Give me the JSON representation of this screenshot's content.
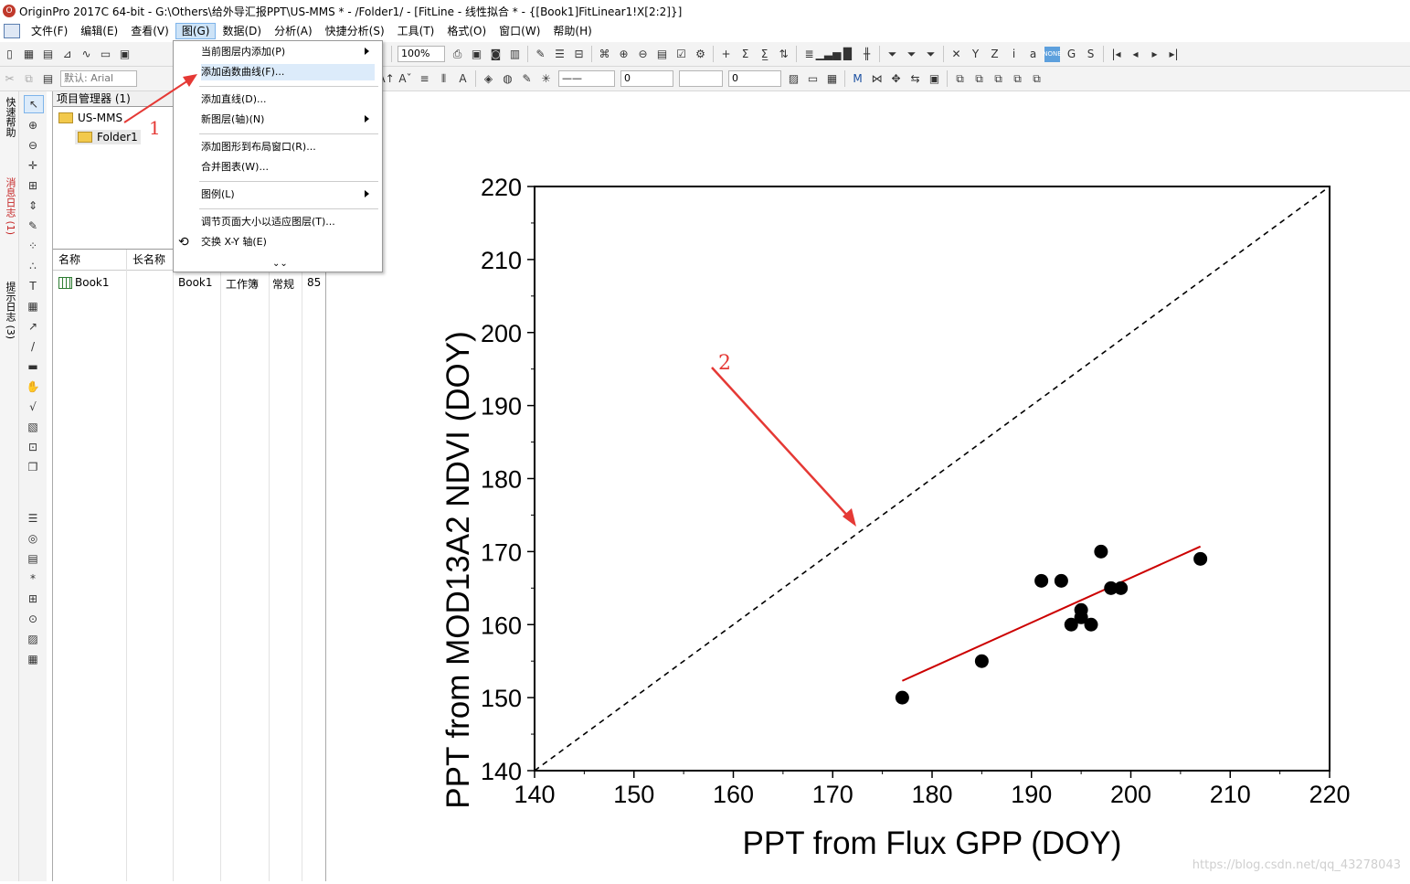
{
  "window": {
    "title": "OriginPro 2017C 64-bit - G:\\Others\\给外导汇报PPT\\US-MMS * - /Folder1/ - [FitLine - 线性拟合 * - {[Book1]FitLinear1!X[2:2]}]"
  },
  "menubar": {
    "items": [
      "文件(F)",
      "编辑(E)",
      "查看(V)",
      "图(G)",
      "数据(D)",
      "分析(A)",
      "快捷分析(S)",
      "工具(T)",
      "格式(O)",
      "窗口(W)",
      "帮助(H)"
    ],
    "active": "图(G)"
  },
  "toolbar": {
    "zoom_value": "100%",
    "font_default": "默认: Arial",
    "size_field_1": "0",
    "size_field_2": "0"
  },
  "left_rail": {
    "labels": [
      "快速帮助",
      "消息日志 (1)",
      "提示日志 (3)"
    ]
  },
  "project_manager": {
    "title": "项目管理器 (1)",
    "root": "US-MMS",
    "folder": "Folder1",
    "columns": [
      "名称",
      "长名称"
    ],
    "rows": [
      {
        "name": "Book1",
        "long_name": "",
        "short": "Book1",
        "type": "工作簿",
        "view": "常规",
        "size": "85"
      }
    ]
  },
  "dropdown_menu": {
    "items": [
      {
        "label": "当前图层内添加(P)",
        "submenu": true
      },
      {
        "label": "添加函数曲线(F)...",
        "submenu": false
      },
      {
        "label": "添加直线(D)...",
        "submenu": false
      },
      {
        "label": "新图层(轴)(N)",
        "submenu": true
      },
      {
        "label": "添加图形到布局窗口(R)...",
        "submenu": false
      },
      {
        "label": "合并图表(W)...",
        "submenu": false
      },
      {
        "label": "图例(L)",
        "submenu": true
      },
      {
        "label": "调节页面大小以适应图层(T)...",
        "submenu": false
      },
      {
        "label": "交换 X-Y 轴(E)",
        "submenu": false
      }
    ]
  },
  "annotations": {
    "label_1": "1",
    "label_2": "2",
    "color": "#e53935"
  },
  "chart_data": {
    "type": "scatter",
    "title": "",
    "xlabel": "PPT from Flux GPP (DOY)",
    "ylabel": "PPT from MOD13A2 NDVI (DOY)",
    "xlim": [
      140,
      220
    ],
    "ylim": [
      140,
      220
    ],
    "xticks": [
      140,
      150,
      160,
      170,
      180,
      190,
      200,
      210,
      220
    ],
    "yticks": [
      140,
      150,
      160,
      170,
      180,
      190,
      200,
      210,
      220
    ],
    "points": [
      {
        "x": 177,
        "y": 150
      },
      {
        "x": 185,
        "y": 155
      },
      {
        "x": 191,
        "y": 166
      },
      {
        "x": 193,
        "y": 166
      },
      {
        "x": 194,
        "y": 160
      },
      {
        "x": 195,
        "y": 161
      },
      {
        "x": 195,
        "y": 162
      },
      {
        "x": 196,
        "y": 160
      },
      {
        "x": 197,
        "y": 170
      },
      {
        "x": 198,
        "y": 165
      },
      {
        "x": 199,
        "y": 165
      },
      {
        "x": 207,
        "y": 169
      }
    ],
    "fit_line": {
      "x": [
        177,
        207
      ],
      "y": [
        152.3,
        170.7
      ],
      "color": "#cc0000"
    },
    "identity_line": {
      "x": [
        140,
        220
      ],
      "y": [
        140,
        220
      ],
      "style": "dashed",
      "color": "#000000"
    },
    "point_color": "#000000"
  },
  "watermark": "https://blog.csdn.net/qq_43278043"
}
